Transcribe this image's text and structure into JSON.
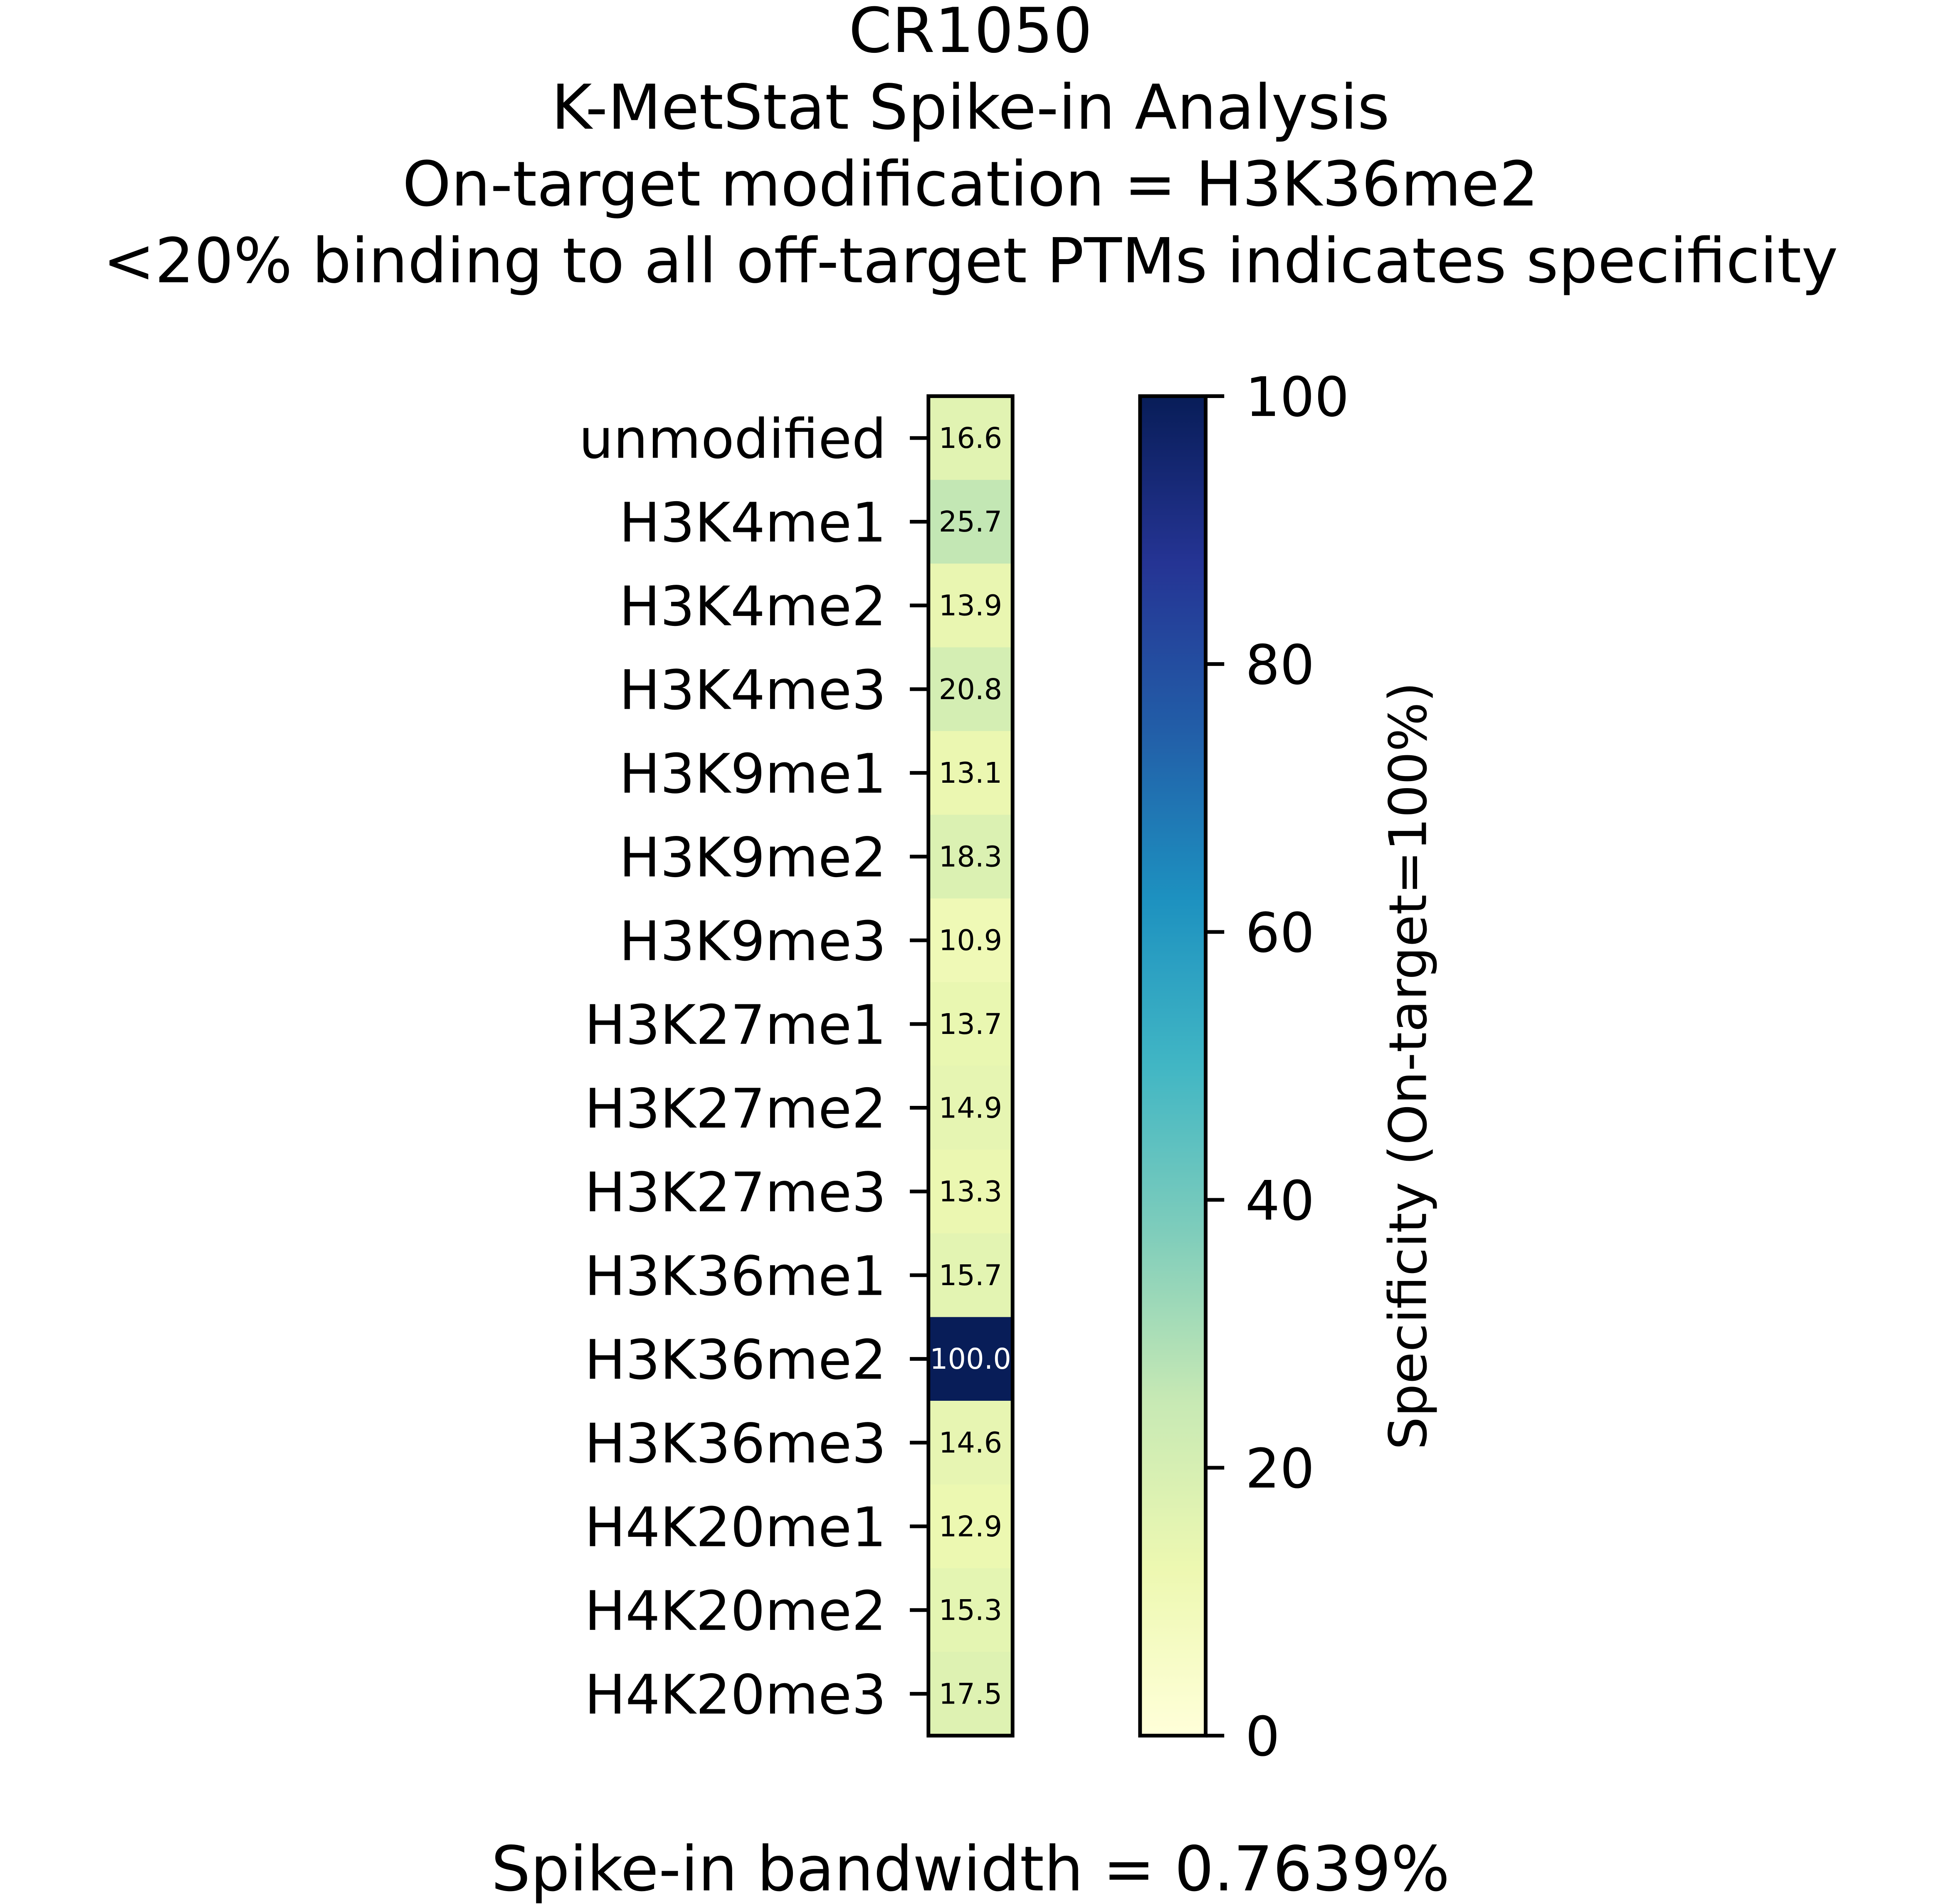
{
  "chart_data": {
    "type": "heatmap",
    "title_lines": [
      "CR1050",
      "K-MetStat Spike-in Analysis",
      "On-target modification = H3K36me2",
      "<20% binding to all off-target PTMs indicates specificity"
    ],
    "categories": [
      "unmodified",
      "H3K4me1",
      "H3K4me2",
      "H3K4me3",
      "H3K9me1",
      "H3K9me2",
      "H3K9me3",
      "H3K27me1",
      "H3K27me2",
      "H3K27me3",
      "H3K36me1",
      "H3K36me2",
      "H3K36me3",
      "H4K20me1",
      "H4K20me2",
      "H4K20me3"
    ],
    "values": [
      16.6,
      25.7,
      13.9,
      20.8,
      13.1,
      18.3,
      10.9,
      13.7,
      14.9,
      13.3,
      15.7,
      100.0,
      14.6,
      12.9,
      15.3,
      17.5
    ],
    "colormap": "YlGnBu",
    "colormap_stops": [
      "#ffffd9",
      "#edf8b1",
      "#c7e9b4",
      "#7fcdbb",
      "#41b6c4",
      "#1d91c0",
      "#225ea8",
      "#253494",
      "#081d58"
    ],
    "colorbar": {
      "label": "Specificity (On-target=100%)",
      "range": [
        0,
        100
      ],
      "ticks": [
        "0",
        "20",
        "40",
        "60",
        "80",
        "100"
      ]
    },
    "xlabel": "Spike-in bandwidth = 0.7639%"
  }
}
